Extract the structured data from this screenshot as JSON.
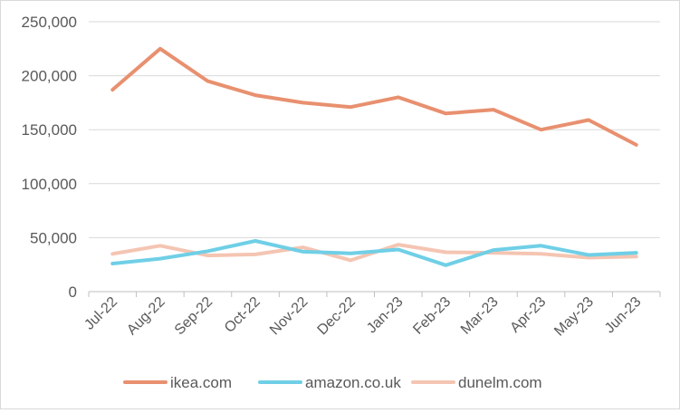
{
  "chart_data": {
    "type": "line",
    "title": "",
    "xlabel": "",
    "ylabel": "",
    "categories": [
      "Jul-22",
      "Aug-22",
      "Sep-22",
      "Oct-22",
      "Nov-22",
      "Dec-22",
      "Jan-23",
      "Feb-23",
      "Mar-23",
      "Apr-23",
      "May-23",
      "Jun-23"
    ],
    "ylim": [
      0,
      250000
    ],
    "y_ticks": [
      0,
      50000,
      100000,
      150000,
      200000,
      250000
    ],
    "y_tick_labels": [
      "0",
      "50,000",
      "100,000",
      "150,000",
      "200,000",
      "250,000"
    ],
    "grid": "horizontal",
    "legend_position": "bottom",
    "series": [
      {
        "name": "ikea.com",
        "color": "#E8906F",
        "values": [
          187000,
          225000,
          195000,
          182000,
          175000,
          171000,
          180000,
          165000,
          168500,
          150000,
          159000,
          136000
        ]
      },
      {
        "name": "amazon.co.uk",
        "color": "#6FCFE6",
        "values": [
          26000,
          30500,
          37500,
          47000,
          37000,
          35500,
          39000,
          24500,
          38500,
          42500,
          34000,
          36000
        ]
      },
      {
        "name": "dunelm.com",
        "color": "#F4C5B2",
        "values": [
          35000,
          42500,
          33500,
          34500,
          41000,
          29000,
          43500,
          36500,
          36000,
          35000,
          31500,
          32500
        ]
      }
    ]
  }
}
